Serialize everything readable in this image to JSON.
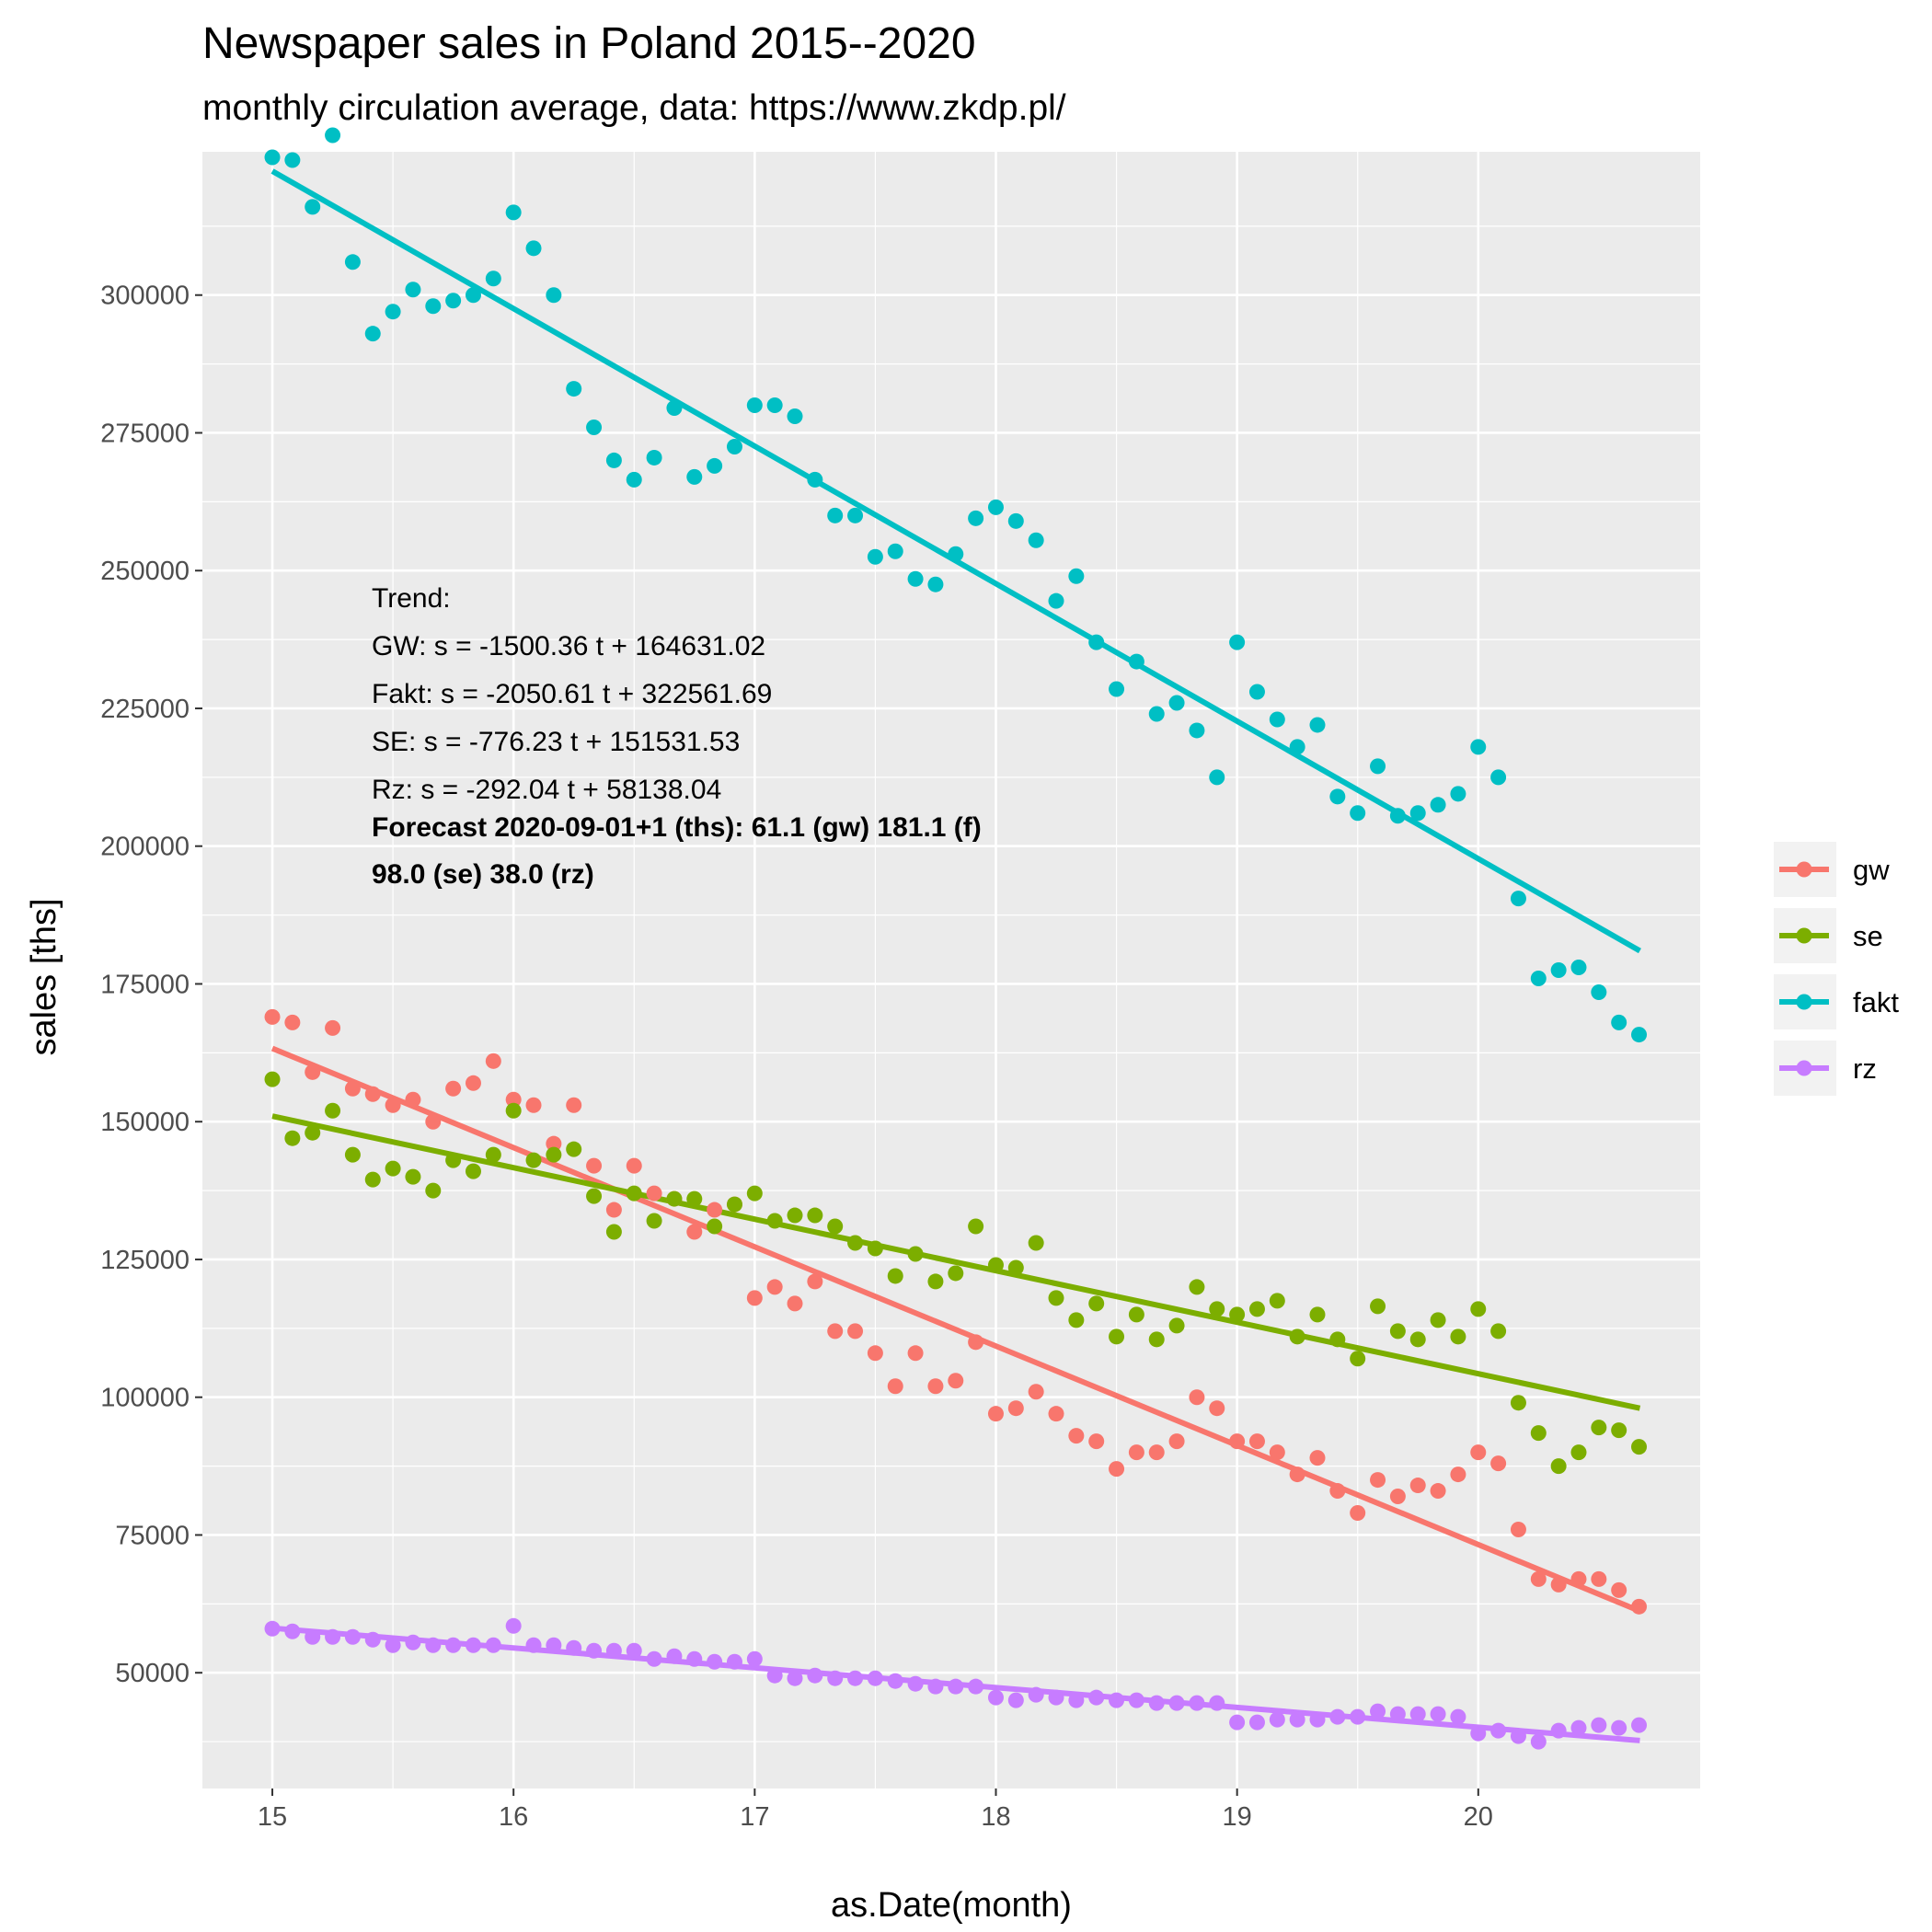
{
  "chart_data": {
    "type": "scatter",
    "title": "Newspaper sales in Poland 2015--2020",
    "subtitle": "monthly circulation average, data: https://www.zkdp.pl/",
    "xlabel": "as.Date(month)",
    "ylabel": "sales [ths]",
    "xlim": [
      14.71,
      20.92
    ],
    "ylim": [
      29000,
      326000
    ],
    "x_ticks": [
      15,
      16,
      17,
      18,
      19,
      20
    ],
    "y_ticks": [
      50000,
      75000,
      100000,
      125000,
      150000,
      175000,
      200000,
      225000,
      250000,
      275000,
      300000
    ],
    "grid": true,
    "legend_position": "right",
    "series": [
      {
        "name": "gw",
        "color": "#F8766D",
        "x_start": 15,
        "x_step": 0.08333,
        "values": [
          169000,
          168000,
          159000,
          167000,
          156000,
          155000,
          153000,
          154000,
          150000,
          156000,
          157000,
          161000,
          154000,
          153000,
          146000,
          153000,
          142000,
          134000,
          142000,
          137000,
          136000,
          130000,
          134000,
          135000,
          118000,
          120000,
          117000,
          121000,
          112000,
          112000,
          108000,
          102000,
          108000,
          102000,
          103000,
          110000,
          97000,
          98000,
          101000,
          97000,
          93000,
          92000,
          87000,
          90000,
          90000,
          92000,
          100000,
          98000,
          92000,
          92000,
          90000,
          86000,
          89000,
          83000,
          79000,
          85000,
          82000,
          84000,
          83000,
          86000,
          90000,
          88000,
          76000,
          67000,
          66000,
          67000,
          67000,
          65000,
          62000
        ],
        "trend": [
          [
            15,
            163300
          ],
          [
            20.67,
            61200
          ]
        ]
      },
      {
        "name": "se",
        "color": "#7CAE00",
        "x_start": 15,
        "x_step": 0.08333,
        "values": [
          157700,
          147000,
          148000,
          152000,
          144000,
          139500,
          141500,
          140000,
          137500,
          143000,
          141000,
          144000,
          152000,
          143000,
          144000,
          145000,
          136500,
          130000,
          137000,
          132000,
          136000,
          136000,
          131000,
          135000,
          137000,
          132000,
          133000,
          133000,
          131000,
          128000,
          127000,
          122000,
          126000,
          121000,
          122500,
          131000,
          124000,
          123500,
          128000,
          118000,
          114000,
          117000,
          111000,
          115000,
          110500,
          113000,
          120000,
          116000,
          115000,
          116000,
          117500,
          111000,
          115000,
          110500,
          107000,
          116500,
          112000,
          110500,
          114000,
          111000,
          116000,
          112000,
          99000,
          93500,
          87500,
          90000,
          94500,
          94000,
          91000
        ],
        "trend": [
          [
            15,
            151000
          ],
          [
            20.67,
            98000
          ]
        ]
      },
      {
        "name": "fakt",
        "color": "#00BFC4",
        "x_start": 15,
        "x_step": 0.08333,
        "values": [
          325000,
          324500,
          316000,
          329000,
          306000,
          293000,
          297000,
          301000,
          298000,
          299000,
          300000,
          303000,
          315000,
          308500,
          300000,
          283000,
          276000,
          270000,
          266500,
          270500,
          279500,
          267000,
          269000,
          272500,
          280000,
          280000,
          278000,
          266500,
          260000,
          260000,
          252500,
          253500,
          248500,
          247500,
          253000,
          259500,
          261500,
          259000,
          255500,
          244500,
          249000,
          237000,
          228500,
          233500,
          224000,
          226000,
          221000,
          212500,
          237000,
          228000,
          223000,
          218000,
          222000,
          209000,
          206000,
          214500,
          205500,
          206000,
          207500,
          209500,
          218000,
          212500,
          190500,
          176000,
          177500,
          178000,
          173500,
          168000,
          165800
        ],
        "trend": [
          [
            15,
            322500
          ],
          [
            20.67,
            181000
          ]
        ]
      },
      {
        "name": "rz",
        "color": "#C77CFF",
        "x_start": 15,
        "x_step": 0.08333,
        "values": [
          58000,
          57500,
          56500,
          56500,
          56500,
          56000,
          55000,
          55500,
          55000,
          55000,
          55000,
          55000,
          58500,
          55000,
          55000,
          54500,
          54000,
          54000,
          54000,
          52500,
          53000,
          52500,
          52000,
          52000,
          52500,
          49500,
          49000,
          49500,
          49000,
          49000,
          49000,
          48500,
          48000,
          47500,
          47500,
          47500,
          45500,
          45000,
          46000,
          45500,
          45000,
          45500,
          45000,
          45000,
          44500,
          44500,
          44500,
          44500,
          41000,
          41000,
          41500,
          41500,
          41500,
          42000,
          42000,
          43000,
          42500,
          42500,
          42500,
          42000,
          39000,
          39500,
          38500,
          37500,
          39500,
          40000,
          40500,
          40000,
          40500
        ],
        "trend": [
          [
            15,
            58100
          ],
          [
            20.67,
            37700
          ]
        ]
      }
    ]
  },
  "annotation": {
    "line1": "Trend:",
    "line2": "GW: s = -1500.36 t + 164631.02",
    "line3": "Fakt: s = -2050.61 t + 322561.69",
    "line4": "SE: s = -776.23 t + 151531.53",
    "line5": "Rz: s = -292.04 t + 58138.04",
    "forecast1": "Forecast 2020-09-01+1 (ths): 61.1 (gw) 181.1 (f)",
    "forecast2": "98.0 (se) 38.0 (rz)"
  }
}
